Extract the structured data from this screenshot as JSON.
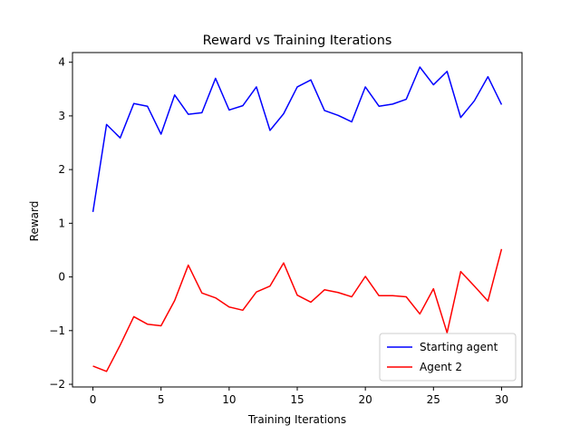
{
  "chart_data": {
    "type": "line",
    "title": "Reward vs Training Iterations",
    "xlabel": "Training Iterations",
    "ylabel": "Reward",
    "xlim": [
      -1.5,
      31.5
    ],
    "ylim": [
      -2.05,
      4.18
    ],
    "xticks": [
      0,
      5,
      10,
      15,
      20,
      25,
      30
    ],
    "yticks": [
      -2,
      -1,
      0,
      1,
      2,
      3,
      4
    ],
    "ytick_labels": [
      "−2",
      "−1",
      "0",
      "1",
      "2",
      "3",
      "4"
    ],
    "grid": false,
    "legend_position": "lower-right",
    "x": [
      0,
      1,
      2,
      3,
      4,
      5,
      6,
      7,
      8,
      9,
      10,
      11,
      12,
      13,
      14,
      15,
      16,
      17,
      18,
      19,
      20,
      21,
      22,
      23,
      24,
      25,
      26,
      27,
      28,
      29,
      30
    ],
    "series": [
      {
        "name": "Starting agent",
        "color": "#0000ff",
        "values": [
          1.21,
          2.84,
          2.59,
          3.23,
          3.18,
          2.66,
          3.39,
          3.03,
          3.06,
          3.7,
          3.11,
          3.19,
          3.54,
          2.73,
          3.04,
          3.54,
          3.67,
          3.1,
          3.01,
          2.89,
          3.54,
          3.18,
          3.22,
          3.31,
          3.91,
          3.58,
          3.83,
          2.97,
          3.28,
          3.73,
          3.21
        ]
      },
      {
        "name": "Agent 2",
        "color": "#ff0000",
        "values": [
          -1.66,
          -1.76,
          -1.27,
          -0.74,
          -0.88,
          -0.91,
          -0.44,
          0.22,
          -0.3,
          -0.39,
          -0.56,
          -0.62,
          -0.28,
          -0.17,
          0.26,
          -0.34,
          -0.47,
          -0.24,
          -0.29,
          -0.37,
          0.01,
          -0.35,
          -0.35,
          -0.37,
          -0.69,
          -0.22,
          -1.04,
          0.1,
          -0.17,
          -0.45,
          0.52
        ]
      }
    ]
  }
}
